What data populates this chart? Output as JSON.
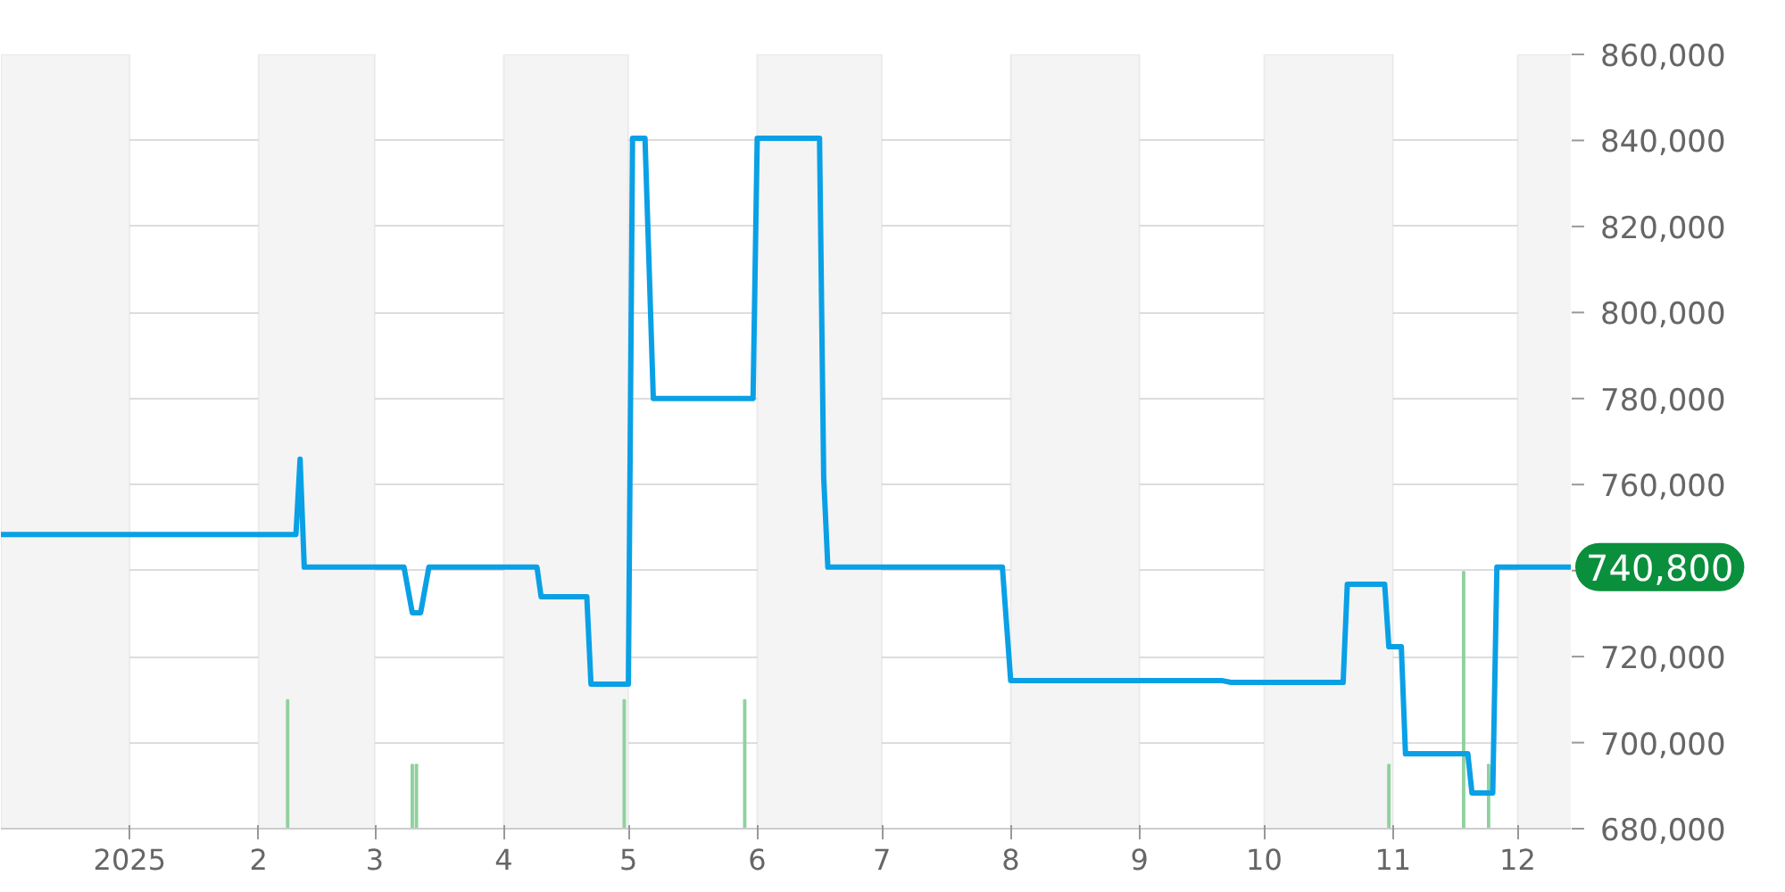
{
  "chart_data": {
    "type": "line",
    "series": [
      {
        "color": "#0aa0e6",
        "x": [
          "2024-12-01",
          "2025-02-10",
          "2025-02-11",
          "2025-02-12",
          "2025-03-08",
          "2025-03-10",
          "2025-03-12",
          "2025-03-14",
          "2025-04-09",
          "2025-04-10",
          "2025-04-21",
          "2025-04-22",
          "2025-05-01",
          "2025-05-02",
          "2025-05-05",
          "2025-05-07",
          "2025-05-31",
          "2025-06-01",
          "2025-06-16",
          "2025-06-17",
          "2025-06-18",
          "2025-07-30",
          "2025-08-01",
          "2025-09-21",
          "2025-09-23",
          "2025-10-20",
          "2025-10-21",
          "2025-10-30",
          "2025-10-31",
          "2025-11-03",
          "2025-11-04",
          "2025-11-19",
          "2025-11-20",
          "2025-11-25",
          "2025-11-26",
          "2025-12-14"
        ],
        "values": [
          748400,
          748400,
          765900,
          740800,
          740800,
          730200,
          730200,
          740800,
          740800,
          733900,
          733900,
          713600,
          713600,
          840500,
          840500,
          780000,
          780000,
          840500,
          840500,
          761700,
          740800,
          740800,
          714400,
          714400,
          714000,
          714000,
          736800,
          736800,
          722300,
          722300,
          697400,
          697400,
          688300,
          688300,
          740800,
          740800
        ]
      },
      {
        "type": "bar",
        "color": "#8fd19e",
        "x": [
          "2025-02-08",
          "2025-03-10",
          "2025-03-11",
          "2025-04-30",
          "2025-05-29",
          "2025-10-31",
          "2025-11-18",
          "2025-11-24"
        ],
        "values": [
          709900,
          694900,
          694900,
          709900,
          709900,
          694900,
          739700,
          694900
        ]
      }
    ],
    "xlim": [
      "2024-12-01",
      "2025-12-14"
    ],
    "xticks": [
      {
        "value": "2025-01-01",
        "label": "2025"
      },
      {
        "value": "2025-02-01",
        "label": "2"
      },
      {
        "value": "2025-03-01",
        "label": "3"
      },
      {
        "value": "2025-04-01",
        "label": "4"
      },
      {
        "value": "2025-05-01",
        "label": "5"
      },
      {
        "value": "2025-06-01",
        "label": "6"
      },
      {
        "value": "2025-07-01",
        "label": "7"
      },
      {
        "value": "2025-08-01",
        "label": "8"
      },
      {
        "value": "2025-09-01",
        "label": "9"
      },
      {
        "value": "2025-10-01",
        "label": "10"
      },
      {
        "value": "2025-11-01",
        "label": "11"
      },
      {
        "value": "2025-12-01",
        "label": "12"
      }
    ],
    "ylim": [
      680000,
      860000
    ],
    "yticks": [
      {
        "value": 680000,
        "label": "680,000"
      },
      {
        "value": 700000,
        "label": "700,000"
      },
      {
        "value": 720000,
        "label": "720,000"
      },
      {
        "value": 740000,
        "label": null
      },
      {
        "value": 760000,
        "label": "760,000"
      },
      {
        "value": 780000,
        "label": "780,000"
      },
      {
        "value": 800000,
        "label": "800,000"
      },
      {
        "value": 820000,
        "label": "820,000"
      },
      {
        "value": 840000,
        "label": "840,000"
      },
      {
        "value": 860000,
        "label": "860,000"
      }
    ],
    "bands": [
      {
        "axis": "x",
        "from": "2024-12-01",
        "to": "2025-01-01",
        "color": "#f4f4f4"
      },
      {
        "axis": "x",
        "from": "2025-02-01",
        "to": "2025-03-01",
        "color": "#f4f4f4"
      },
      {
        "axis": "x",
        "from": "2025-04-01",
        "to": "2025-05-01",
        "color": "#f4f4f4"
      },
      {
        "axis": "x",
        "from": "2025-06-01",
        "to": "2025-07-01",
        "color": "#f4f4f4"
      },
      {
        "axis": "x",
        "from": "2025-08-01",
        "to": "2025-09-01",
        "color": "#f4f4f4"
      },
      {
        "axis": "x",
        "from": "2025-10-01",
        "to": "2025-11-01",
        "color": "#f4f4f4"
      },
      {
        "axis": "x",
        "from": "2025-12-01",
        "to": "2025-12-14",
        "color": "#f4f4f4"
      }
    ],
    "annotations": [
      {
        "text": "740,800",
        "x": "2025-12-14",
        "y": 740800
      }
    ],
    "grid": "y"
  }
}
